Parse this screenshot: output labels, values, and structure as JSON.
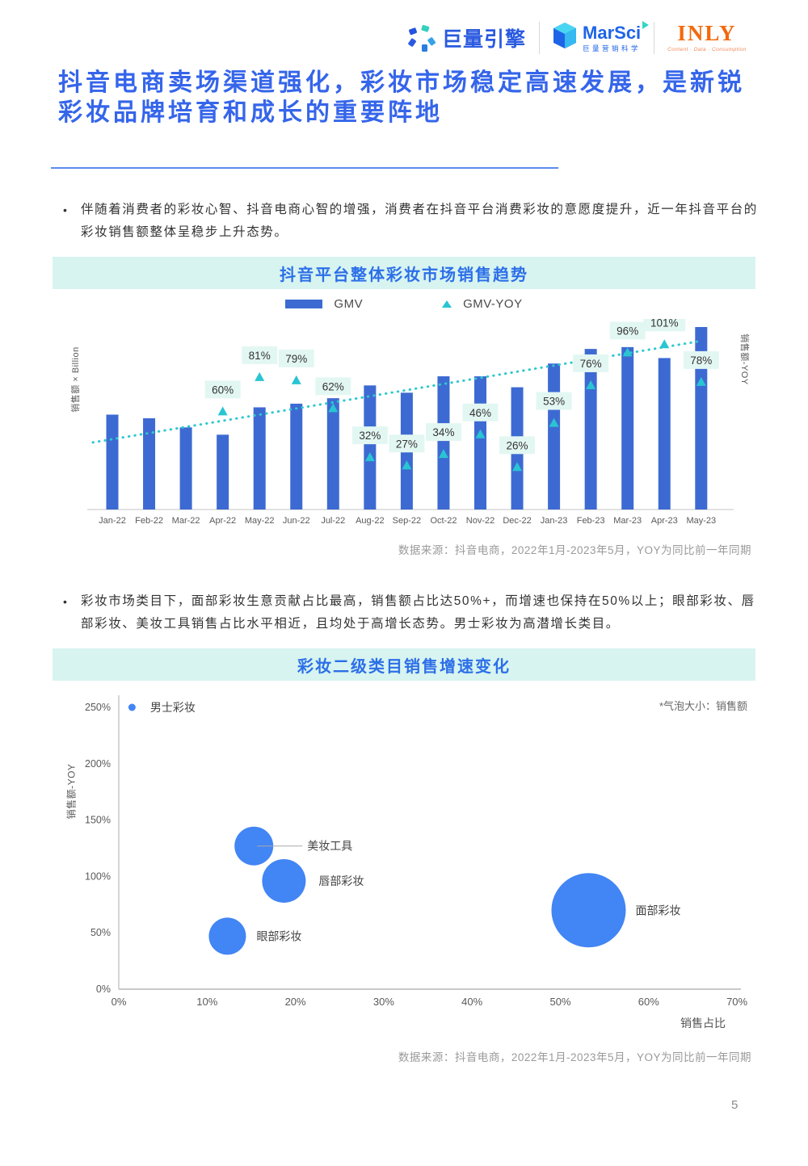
{
  "header": {
    "ocean_engine_label": "巨量引擎",
    "marsci_label": "MarSci",
    "marsci_sub_label": "巨量营销科学",
    "inly_label": "INLY",
    "inly_tagline": "Content · Data · Consumption"
  },
  "title_lines": [
    "抖音电商卖场渠道强化，彩妆市场稳定高速发展，是新锐",
    "彩妆品牌培育和成长的重要阵地"
  ],
  "bullets": [
    "伴随着消费者的彩妆心智、抖音电商心智的增强，消费者在抖音平台消费彩妆的意愿度提升，近一年抖音平台的彩妆销售额整体呈稳步上升态势。",
    "彩妆市场类目下，面部彩妆生意贡献占比最高，销售额占比达50%+，而增速也保持在50%以上；眼部彩妆、唇部彩妆、美妆工具销售占比水平相近，且均处于高增长态势。男士彩妆为高潜增长类目。"
  ],
  "source_note": "数据来源：抖音电商，2022年1月-2023年5月，YOY为同比前一年同期",
  "page_number": "5",
  "colors": {
    "heading_blue": "#3565ea",
    "band_bg": "#d7f4f0",
    "band_text": "#2d6fe8",
    "bar_blue": "#3d6ad2",
    "teal": "#29c5d2",
    "trend_teal": "#2fc8ce",
    "yoy_label_bg": "#e3f7f2",
    "bubble_blue": "#4285f4",
    "axis_gray": "#cfcfcf",
    "tick_text": "#595959",
    "inly_orange": "#f2690c",
    "logo_blue": "#2b5ae0"
  },
  "chart_data": [
    {
      "type": "bar",
      "title": "抖音平台整体彩妆市场销售趋势",
      "legend": [
        "GMV",
        "GMV-YOY"
      ],
      "ylabel_left": "销售额 × Billion",
      "ylabel_right": "销售额-YOY",
      "categories": [
        "Jan-22",
        "Feb-22",
        "Mar-22",
        "Apr-22",
        "May-22",
        "Jun-22",
        "Jul-22",
        "Aug-22",
        "Sep-22",
        "Oct-22",
        "Nov-22",
        "Dec-22",
        "Jan-23",
        "Feb-23",
        "Mar-23",
        "Apr-23",
        "May-23"
      ],
      "series": [
        {
          "name": "GMV",
          "kind": "bar",
          "unit": "relative index (May-23 = 100), axis unlabeled",
          "values": [
            52,
            50,
            45,
            41,
            56,
            58,
            61,
            68,
            64,
            73,
            73,
            67,
            80,
            88,
            89,
            83,
            100
          ]
        },
        {
          "name": "GMV-YOY",
          "kind": "point",
          "unit": "%",
          "values": [
            null,
            null,
            null,
            60,
            81,
            79,
            62,
            32,
            27,
            34,
            46,
            26,
            53,
            76,
            96,
            101,
            78
          ]
        }
      ],
      "yoy_labels": [
        "60%",
        "81%",
        "79%",
        "62%",
        "32%",
        "27%",
        "34%",
        "46%",
        "26%",
        "53%",
        "76%",
        "96%",
        "101%",
        "78%"
      ],
      "trendline_yoy_pct": {
        "start": 41,
        "end": 103
      },
      "grid": false,
      "legend_position": "top-center"
    },
    {
      "type": "scatter",
      "title": "彩妆二级类目销售增速变化",
      "xlabel": "销售占比",
      "ylabel": "销售额-YOY",
      "note": "*气泡大小：销售额",
      "bubble_size_meaning": "销售额",
      "xlim": [
        0,
        70
      ],
      "ylim": [
        0,
        260
      ],
      "x_ticks": [
        "0%",
        "10%",
        "20%",
        "30%",
        "40%",
        "50%",
        "60%",
        "70%"
      ],
      "y_ticks": [
        "0%",
        "50%",
        "100%",
        "150%",
        "200%",
        "250%"
      ],
      "points": [
        {
          "label": "男士彩妆",
          "x_pct": 1.5,
          "y_pct": 250,
          "r": 4.5,
          "leader": false,
          "label_gap": 18
        },
        {
          "label": "美妆工具",
          "x_pct": 15.3,
          "y_pct": 127,
          "r": 24,
          "leader": true,
          "label_gap": 42
        },
        {
          "label": "唇部彩妆",
          "x_pct": 18.7,
          "y_pct": 96,
          "r": 27,
          "leader": false,
          "label_gap": 16
        },
        {
          "label": "眼部彩妆",
          "x_pct": 12.3,
          "y_pct": 47,
          "r": 23,
          "leader": false,
          "label_gap": 13
        },
        {
          "label": "面部彩妆",
          "x_pct": 53.2,
          "y_pct": 70,
          "r": 46,
          "leader": false,
          "label_gap": 12
        }
      ],
      "grid": false
    }
  ]
}
